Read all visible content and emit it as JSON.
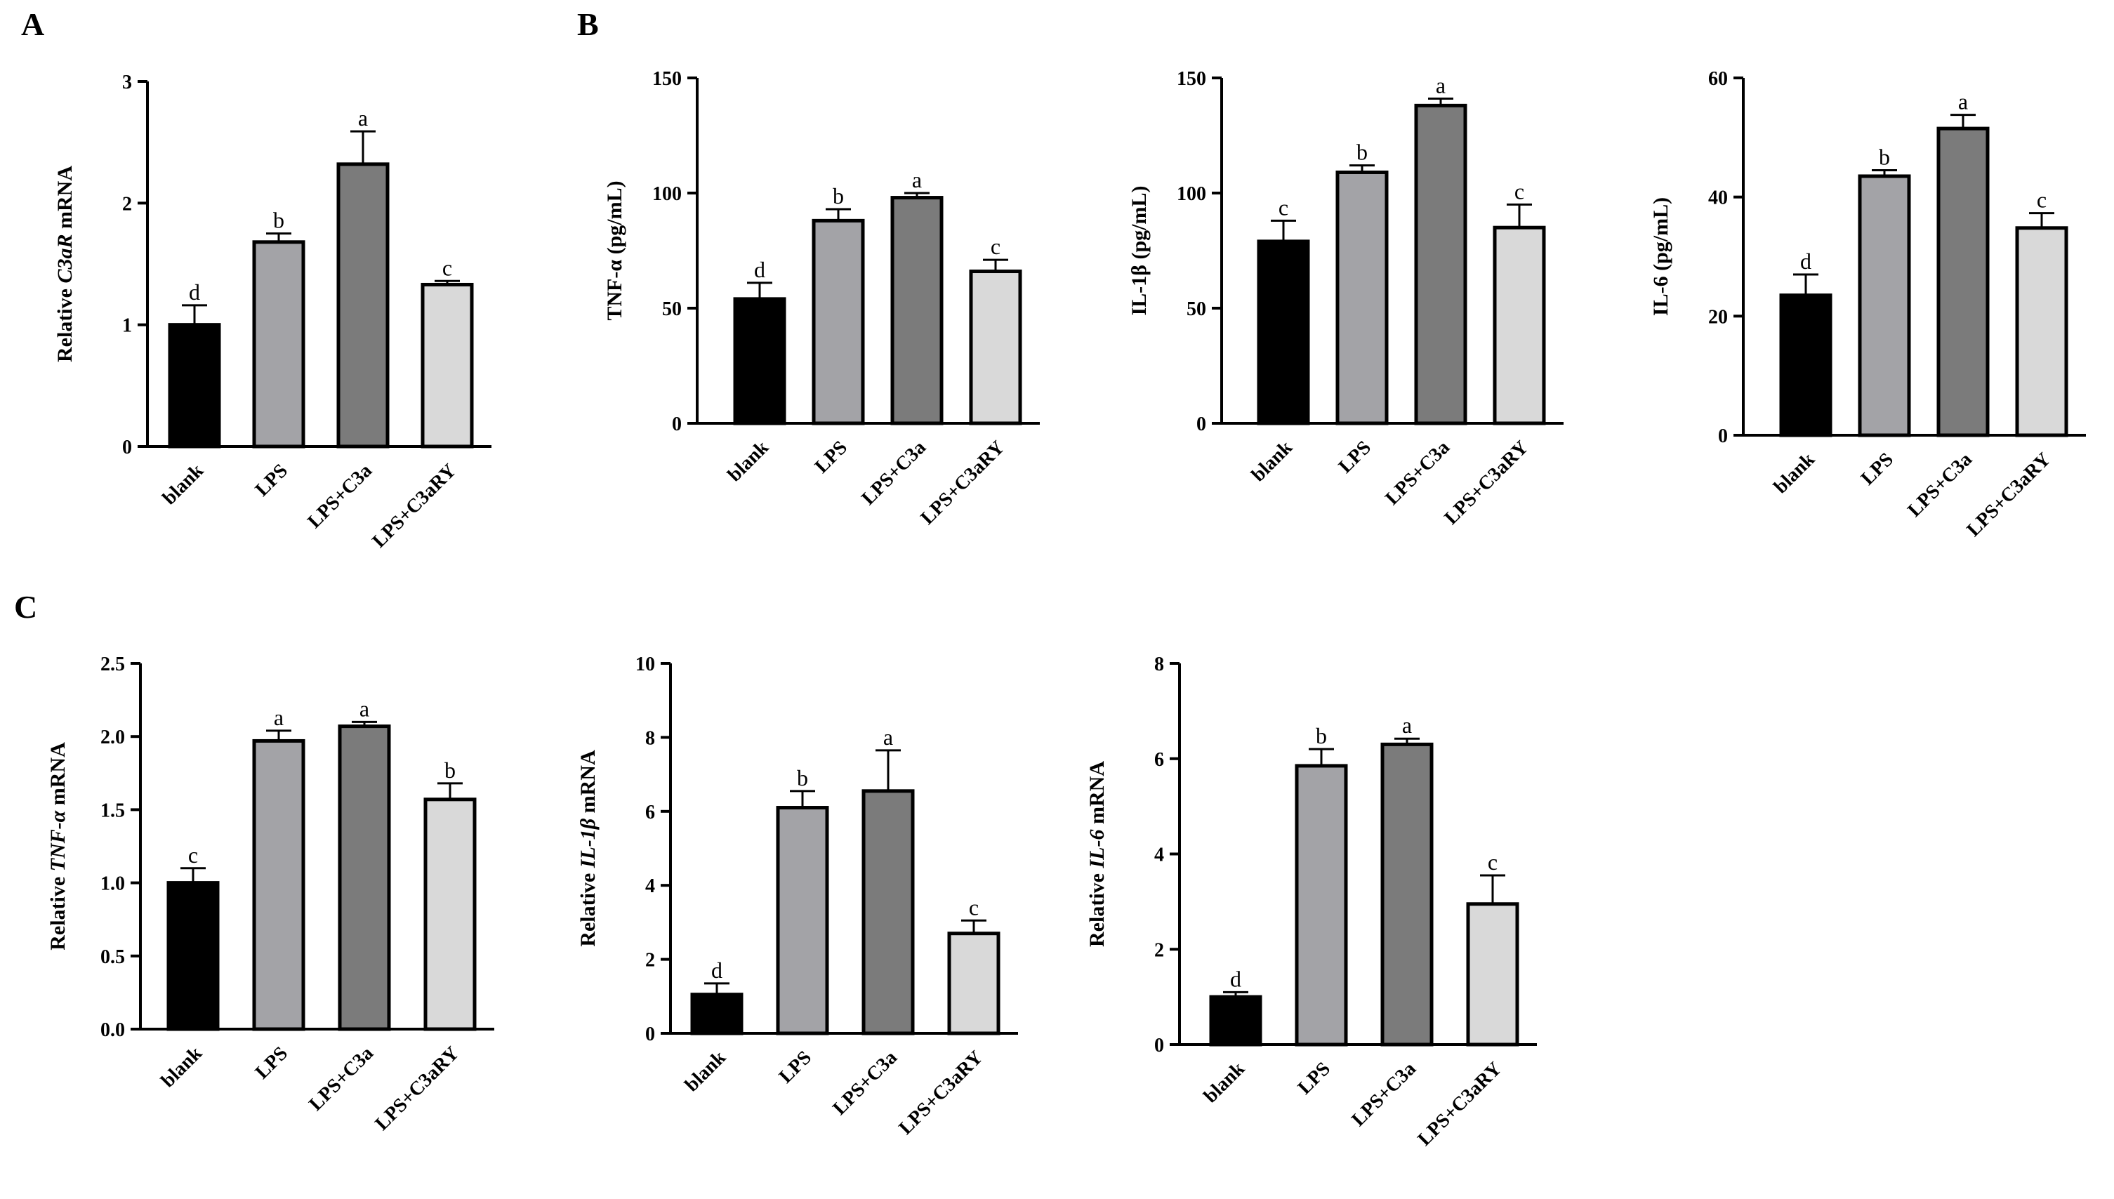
{
  "panel_labels": [
    "A",
    "B",
    "C"
  ],
  "colors": {
    "blank": "#000000",
    "LPS": "#a3a3a7",
    "LPS+C3a": "#7b7b7b",
    "LPS+C3aRY": "#d9d9d9"
  },
  "chart_data": [
    {
      "type": "bar",
      "panel": "A",
      "categories": [
        "blank",
        "LPS",
        "LPS+C3a",
        "LPS+C3aRY"
      ],
      "values": [
        1.0,
        1.68,
        2.32,
        1.33
      ],
      "errors": [
        0.16,
        0.07,
        0.27,
        0.03
      ],
      "letters": [
        "d",
        "b",
        "a",
        "c"
      ],
      "ylabel_pre": "Relative ",
      "ylabel_it": "C3aR",
      "ylabel_post": " mRNA",
      "ylim": [
        0,
        3
      ],
      "yticks": [
        0,
        1,
        2,
        3
      ],
      "ticklabels": [
        "0",
        "1",
        "2",
        "3"
      ]
    },
    {
      "type": "bar",
      "panel": "B",
      "categories": [
        "blank",
        "LPS",
        "LPS+C3a",
        "LPS+C3aRY"
      ],
      "values": [
        54,
        88,
        98,
        66
      ],
      "errors": [
        7,
        5,
        2,
        5
      ],
      "letters": [
        "d",
        "b",
        "a",
        "c"
      ],
      "ylabel_pre": "TNF-α (pg/mL)",
      "ylabel_it": "",
      "ylabel_post": "",
      "ylim": [
        0,
        150
      ],
      "yticks": [
        0,
        50,
        100,
        150
      ],
      "ticklabels": [
        "0",
        "50",
        "100",
        "150"
      ]
    },
    {
      "type": "bar",
      "panel": "B",
      "categories": [
        "blank",
        "LPS",
        "LPS+C3a",
        "LPS+C3aRY"
      ],
      "values": [
        79,
        109,
        138,
        85
      ],
      "errors": [
        9,
        3,
        3,
        10
      ],
      "letters": [
        "c",
        "b",
        "a",
        "c"
      ],
      "ylabel_pre": "IL-1β (pg/mL)",
      "ylabel_it": "",
      "ylabel_post": "",
      "ylim": [
        0,
        150
      ],
      "yticks": [
        0,
        50,
        100,
        150
      ],
      "ticklabels": [
        "0",
        "50",
        "100",
        "150"
      ]
    },
    {
      "type": "bar",
      "panel": "B",
      "categories": [
        "blank",
        "LPS",
        "LPS+C3a",
        "LPS+C3aRY"
      ],
      "values": [
        23.5,
        43.5,
        51.5,
        34.8
      ],
      "errors": [
        3.5,
        1.0,
        2.3,
        2.5
      ],
      "letters": [
        "d",
        "b",
        "a",
        "c"
      ],
      "ylabel_pre": "IL-6 (pg/mL)",
      "ylabel_it": "",
      "ylabel_post": "",
      "ylim": [
        0,
        60
      ],
      "yticks": [
        0,
        20,
        40,
        60
      ],
      "ticklabels": [
        "0",
        "20",
        "40",
        "60"
      ]
    },
    {
      "type": "bar",
      "panel": "C",
      "categories": [
        "blank",
        "LPS",
        "LPS+C3a",
        "LPS+C3aRY"
      ],
      "values": [
        1.0,
        1.97,
        2.07,
        1.57
      ],
      "errors": [
        0.1,
        0.07,
        0.03,
        0.11
      ],
      "letters": [
        "c",
        "a",
        "a",
        "b"
      ],
      "ylabel_pre": "Relative ",
      "ylabel_it": "TNF-α",
      "ylabel_post": " mRNA",
      "ylim": [
        0,
        2.5
      ],
      "yticks": [
        0,
        0.5,
        1.0,
        1.5,
        2.0,
        2.5
      ],
      "ticklabels": [
        "0.0",
        "0.5",
        "1.0",
        "1.5",
        "2.0",
        "2.5"
      ]
    },
    {
      "type": "bar",
      "panel": "C",
      "categories": [
        "blank",
        "LPS",
        "LPS+C3a",
        "LPS+C3aRY"
      ],
      "values": [
        1.05,
        6.1,
        6.55,
        2.7
      ],
      "errors": [
        0.3,
        0.45,
        1.1,
        0.35
      ],
      "letters": [
        "d",
        "b",
        "a",
        "c"
      ],
      "ylabel_pre": "Relative ",
      "ylabel_it": "IL-1β",
      "ylabel_post": " mRNA",
      "ylim": [
        0,
        10
      ],
      "yticks": [
        0,
        2,
        4,
        6,
        8,
        10
      ],
      "ticklabels": [
        "0",
        "2",
        "4",
        "6",
        "8",
        "10"
      ]
    },
    {
      "type": "bar",
      "panel": "C",
      "categories": [
        "blank",
        "LPS",
        "LPS+C3a",
        "LPS+C3aRY"
      ],
      "values": [
        1.0,
        5.85,
        6.3,
        2.95
      ],
      "errors": [
        0.1,
        0.35,
        0.12,
        0.6
      ],
      "letters": [
        "d",
        "b",
        "a",
        "c"
      ],
      "ylabel_pre": "Relative ",
      "ylabel_it": "IL-6",
      "ylabel_post": " mRNA",
      "ylim": [
        0,
        8
      ],
      "yticks": [
        0,
        2,
        4,
        6,
        8
      ],
      "ticklabels": [
        "0",
        "2",
        "4",
        "6",
        "8"
      ]
    }
  ]
}
